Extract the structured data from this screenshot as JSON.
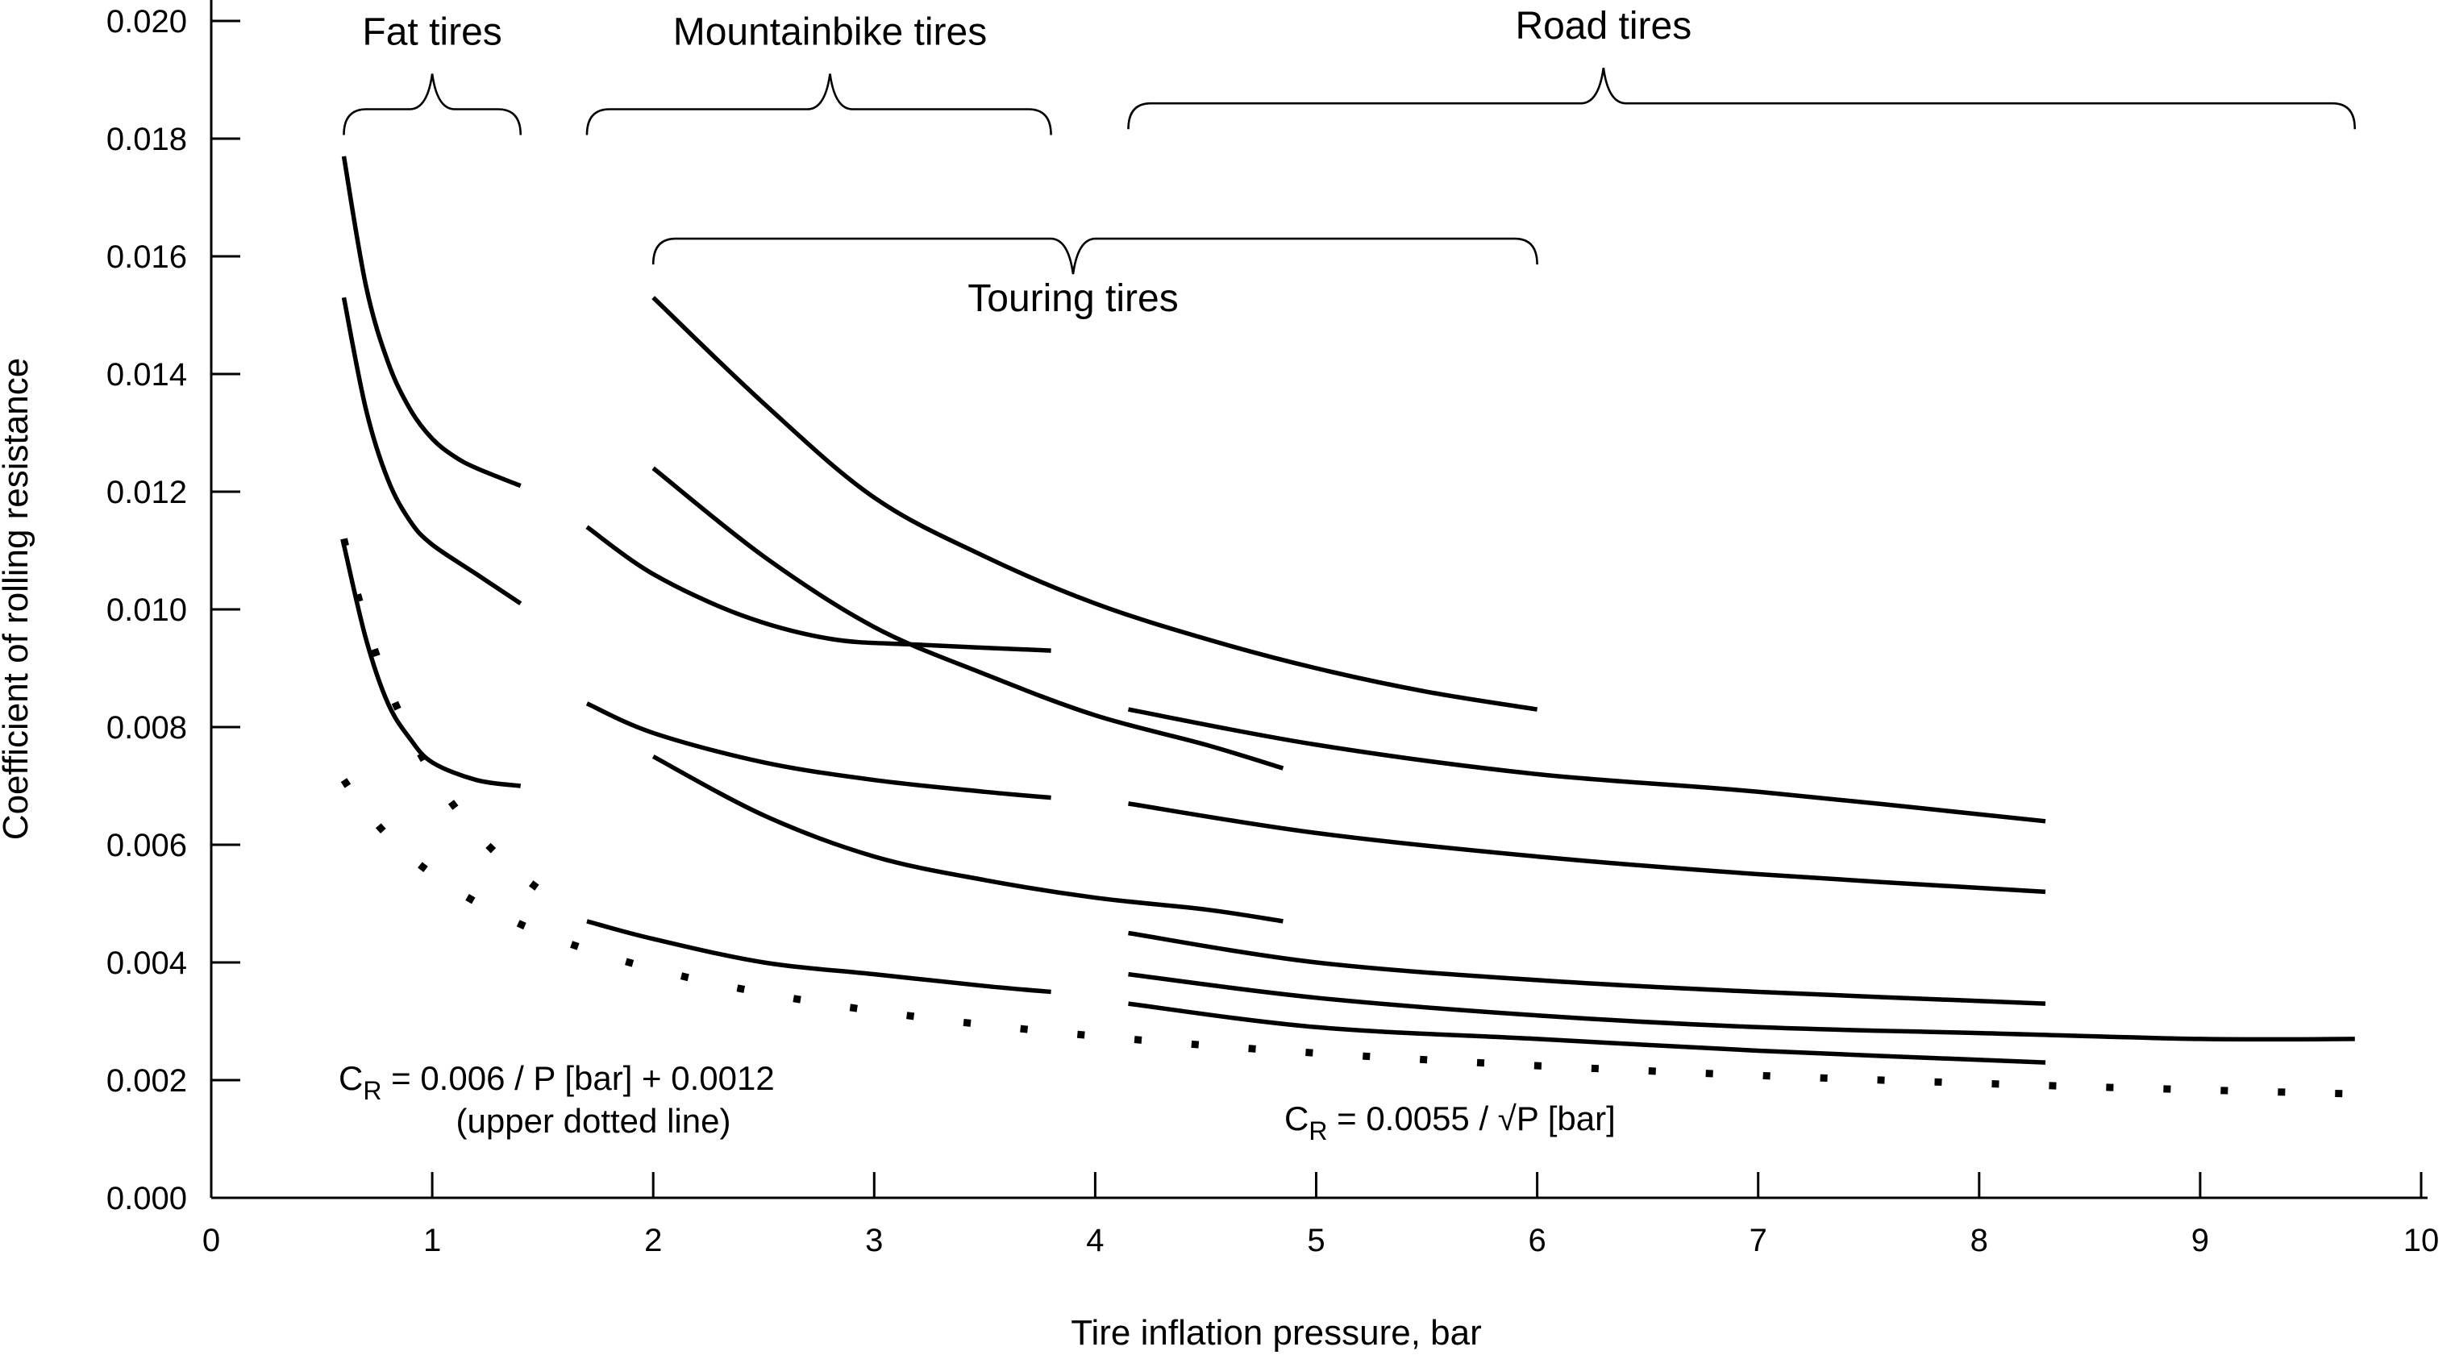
{
  "chart_data": {
    "type": "line",
    "title": "",
    "xlabel": "Tire inflation pressure, bar",
    "ylabel": "Coefficient of rolling resistance",
    "xlim": [
      0,
      10
    ],
    "ylim": [
      0,
      0.02
    ],
    "x_ticks": [
      0,
      1,
      2,
      3,
      4,
      5,
      6,
      7,
      8,
      9,
      10
    ],
    "y_ticks": [
      0.0,
      0.002,
      0.004,
      0.006,
      0.008,
      0.01,
      0.012,
      0.014,
      0.016,
      0.018,
      0.02
    ],
    "x_tick_labels": [
      "0",
      "1",
      "2",
      "3",
      "4",
      "5",
      "6",
      "7",
      "8",
      "9",
      "10"
    ],
    "y_tick_labels": [
      "0.000",
      "0.002",
      "0.004",
      "0.006",
      "0.008",
      "0.010",
      "0.012",
      "0.014",
      "0.016",
      "0.018",
      "0.020"
    ],
    "grid": false,
    "groups": [
      {
        "label": "Fat tires",
        "range": [
          0.6,
          1.4
        ],
        "y": 0.0185,
        "tip_x": 1.0
      },
      {
        "label": "Mountainbike tires",
        "range": [
          1.7,
          3.8
        ],
        "y": 0.0185,
        "tip_x": 2.8
      },
      {
        "label": "Road tires",
        "range": [
          4.15,
          9.7
        ],
        "y": 0.0186,
        "tip_x": 6.3
      },
      {
        "label": "Touring tires",
        "range": [
          2.0,
          6.0
        ],
        "y": 0.0163,
        "tip_x": 3.9,
        "label_below": true
      }
    ],
    "annotations": {
      "formula_upper_main": "C",
      "formula_upper_sub": "R",
      "formula_upper_rest": " = 0.006 / P [bar] + 0.0012",
      "formula_upper_note": "(upper dotted line)",
      "formula_lower_main": "C",
      "formula_lower_sub": "R",
      "formula_lower_rest": " = 0.0055 / √P [bar]"
    },
    "series": [
      {
        "group": "Fat tires",
        "x": [
          0.6,
          0.7,
          0.8,
          0.9,
          1.0,
          1.1,
          1.2,
          1.4
        ],
        "y": [
          0.0177,
          0.0155,
          0.0142,
          0.0134,
          0.0129,
          0.0126,
          0.0124,
          0.0121
        ]
      },
      {
        "group": "Fat tires",
        "x": [
          0.6,
          0.7,
          0.8,
          0.9,
          1.0,
          1.2,
          1.4
        ],
        "y": [
          0.0153,
          0.0134,
          0.0122,
          0.0115,
          0.0111,
          0.0106,
          0.0101
        ]
      },
      {
        "group": "Fat tires",
        "x": [
          0.6,
          0.7,
          0.8,
          0.9,
          1.0,
          1.2,
          1.4
        ],
        "y": [
          0.0111,
          0.0095,
          0.0084,
          0.0078,
          0.0074,
          0.0071,
          0.007
        ]
      },
      {
        "group": "Mountainbike tires",
        "x": [
          1.7,
          2.0,
          2.4,
          2.8,
          3.2,
          3.8
        ],
        "y": [
          0.0114,
          0.0106,
          0.0099,
          0.0095,
          0.0094,
          0.0093
        ]
      },
      {
        "group": "Mountainbike tires",
        "x": [
          1.7,
          2.0,
          2.5,
          3.0,
          3.5,
          3.8
        ],
        "y": [
          0.0084,
          0.0079,
          0.0074,
          0.0071,
          0.0069,
          0.0068
        ]
      },
      {
        "group": "Mountainbike tires",
        "x": [
          1.7,
          2.0,
          2.5,
          3.0,
          3.5,
          3.8
        ],
        "y": [
          0.0047,
          0.0044,
          0.004,
          0.0038,
          0.0036,
          0.0035
        ]
      },
      {
        "group": "Touring tires",
        "x": [
          2.0,
          2.5,
          3.0,
          3.5,
          4.0,
          4.5,
          5.0,
          5.5,
          6.0
        ],
        "y": [
          0.0153,
          0.0135,
          0.0119,
          0.0109,
          0.0101,
          0.0095,
          0.009,
          0.0086,
          0.0083
        ]
      },
      {
        "group": "Touring tires",
        "x": [
          2.0,
          2.5,
          3.0,
          3.5,
          4.0,
          4.5,
          4.85
        ],
        "y": [
          0.0124,
          0.0109,
          0.0097,
          0.0089,
          0.0082,
          0.0077,
          0.0073
        ]
      },
      {
        "group": "Touring tires",
        "x": [
          2.0,
          2.5,
          3.0,
          3.5,
          4.0,
          4.5,
          4.85
        ],
        "y": [
          0.0075,
          0.0065,
          0.0058,
          0.0054,
          0.0051,
          0.0049,
          0.0047
        ]
      },
      {
        "group": "Road tires",
        "x": [
          4.15,
          5.0,
          6.0,
          7.0,
          8.3
        ],
        "y": [
          0.0083,
          0.0077,
          0.0072,
          0.0069,
          0.0064
        ]
      },
      {
        "group": "Road tires",
        "x": [
          4.15,
          5.0,
          6.0,
          7.0,
          8.3
        ],
        "y": [
          0.0067,
          0.0062,
          0.0058,
          0.0055,
          0.0052
        ]
      },
      {
        "group": "Road tires",
        "x": [
          4.15,
          5.0,
          6.0,
          7.0,
          8.3
        ],
        "y": [
          0.0045,
          0.004,
          0.0037,
          0.0035,
          0.0033
        ]
      },
      {
        "group": "Road tires",
        "x": [
          4.15,
          5.0,
          6.0,
          7.0,
          8.0,
          9.0,
          9.7
        ],
        "y": [
          0.0038,
          0.0034,
          0.0031,
          0.0029,
          0.0028,
          0.0027,
          0.0027
        ]
      },
      {
        "group": "Road tires",
        "x": [
          4.15,
          5.0,
          6.0,
          7.0,
          8.3
        ],
        "y": [
          0.0033,
          0.0029,
          0.0027,
          0.0025,
          0.0023
        ]
      }
    ],
    "reference_lines": [
      {
        "formula": "C_R = 0.006 / P + 0.0012",
        "style": "dotted",
        "x_range": [
          0.6,
          1.6
        ]
      },
      {
        "formula": "C_R = 0.0055 / sqrt(P)",
        "style": "dotted",
        "x_range": [
          0.6,
          9.7
        ]
      }
    ]
  }
}
